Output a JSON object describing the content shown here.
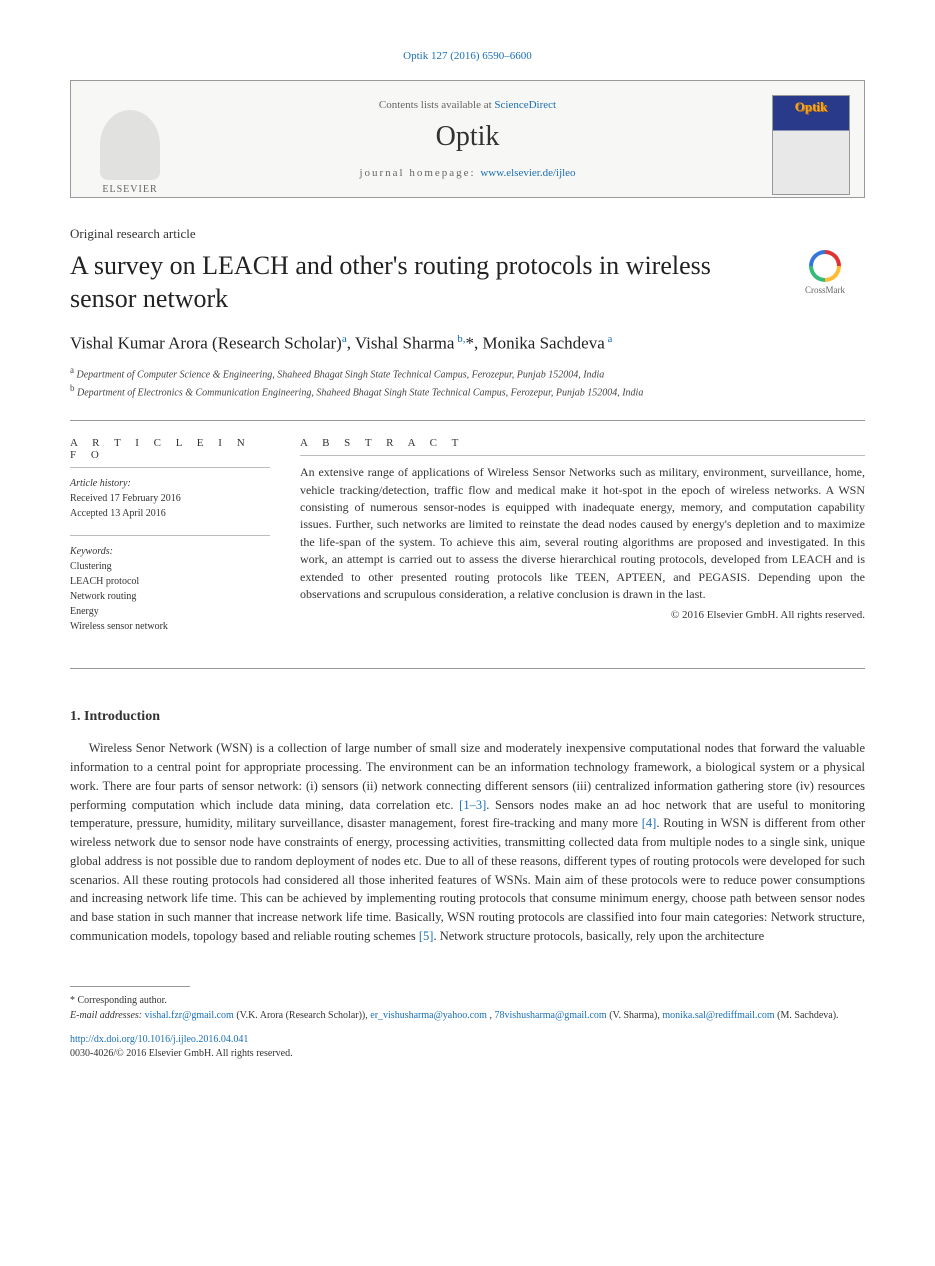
{
  "citation": "Optik 127 (2016) 6590–6600",
  "header": {
    "contents_line_prefix": "Contents lists available at ",
    "contents_link": "ScienceDirect",
    "journal_name": "Optik",
    "homepage_prefix": "journal homepage: ",
    "homepage_url": "www.elsevier.de/ijleo",
    "elsevier_label": "ELSEVIER",
    "cover_title": "Optik"
  },
  "article_type": "Original research article",
  "title": "A survey on LEACH and other's routing protocols in wireless sensor network",
  "crossmark_label": "CrossMark",
  "authors_html": "Vishal Kumar Arora (Research Scholar)<sup>a</sup>, Vishal Sharma<sup> b,</sup>*, Monika Sachdeva<sup> a</sup>",
  "affiliations": [
    {
      "sup": "a",
      "text": "Department of Computer Science & Engineering, Shaheed Bhagat Singh State Technical Campus, Ferozepur, Punjab 152004, India"
    },
    {
      "sup": "b",
      "text": "Department of Electronics & Communication Engineering, Shaheed Bhagat Singh State Technical Campus, Ferozepur, Punjab 152004, India"
    }
  ],
  "info": {
    "section_label_info": "A R T I C L E   I N F O",
    "section_label_abs": "A B S T R A C T",
    "history_label": "Article history:",
    "received": "Received 17 February 2016",
    "accepted": "Accepted 13 April 2016",
    "keywords_label": "Keywords:",
    "keywords": [
      "Clustering",
      "LEACH protocol",
      "Network routing",
      "Energy",
      "Wireless sensor network"
    ]
  },
  "abstract": "An extensive range of applications of Wireless Sensor Networks such as military, environment, surveillance, home, vehicle tracking/detection, traffic flow and medical make it hot-spot in the epoch of wireless networks. A WSN consisting of numerous sensor-nodes is equipped with inadequate energy, memory, and computation capability issues. Further, such networks are limited to reinstate the dead nodes caused by energy's depletion and to maximize the life-span of the system. To achieve this aim, several routing algorithms are proposed and investigated. In this work, an attempt is carried out to assess the diverse hierarchical routing protocols, developed from LEACH and is extended to other presented routing protocols like TEEN, APTEEN, and PEGASIS. Depending upon the observations and scrupulous consideration, a relative conclusion is drawn in the last.",
  "abstract_copyright": "© 2016 Elsevier GmbH. All rights reserved.",
  "sections": {
    "intro_heading": "1.  Introduction",
    "intro_body_pre": "Wireless Senor Network (WSN) is a collection of large number of small size and moderately inexpensive computational nodes that forward the valuable information to a central point for appropriate processing. The environment can be an information technology framework, a biological system or a physical work. There are four parts of sensor network: (i) sensors (ii) network connecting different sensors (iii) centralized information gathering store (iv) resources performing computation which include data mining, data correlation etc. ",
    "intro_ref1": "[1–3]",
    "intro_body_mid1": ". Sensors nodes make an ad hoc network that are useful to monitoring temperature, pressure, humidity, military surveillance, disaster management, forest fire-tracking and many more ",
    "intro_ref2": "[4]",
    "intro_body_mid2": ". Routing in WSN is different from other wireless network due to sensor node have constraints of energy, processing activities, transmitting collected data from multiple nodes to a single sink, unique global address is not possible due to random deployment of nodes etc. Due to all of these reasons, different types of routing protocols were developed for such scenarios. All these routing protocols had considered all those inherited features of WSNs. Main aim of these protocols were to reduce power consumptions and increasing network life time. This can be achieved by implementing routing protocols that consume minimum energy, choose path between sensor nodes and base station in such manner that increase network life time. Basically, WSN routing protocols are classified into four main categories: Network structure, communication models, topology based and reliable routing schemes ",
    "intro_ref3": "[5]",
    "intro_body_post": ". Network structure protocols, basically, rely upon the architecture"
  },
  "footnotes": {
    "corresponding": "* Corresponding author.",
    "email_label": "E-mail addresses:",
    "emails": [
      {
        "email": "vishal.fzr@gmail.com",
        "who": "(V.K. Arora (Research Scholar))"
      },
      {
        "email": "er_vishusharma@yahoo.com",
        "who": ""
      },
      {
        "email": "78vishusharma@gmail.com",
        "who": "(V. Sharma)"
      },
      {
        "email": "monika.sal@rediffmail.com",
        "who": "(M. Sachdeva)"
      }
    ]
  },
  "doi": {
    "url_text": "http://dx.doi.org/10.1016/j.ijleo.2016.04.041",
    "issn_line": "0030-4026/© 2016 Elsevier GmbH. All rights reserved."
  },
  "colors": {
    "link": "#1a6fb5",
    "text": "#333333",
    "rule": "#999999"
  }
}
